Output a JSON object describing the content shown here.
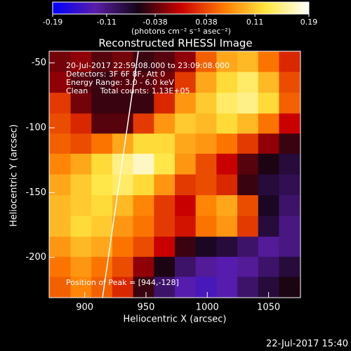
{
  "chart_data": {
    "type": "heatmap",
    "title": "Reconstructed RHESSI Image",
    "colorbar_label": "(photons cm⁻² s⁻¹ asec⁻²)",
    "clim": [
      -0.19,
      0.19
    ],
    "cticks": [
      -0.19,
      -0.11,
      -0.038,
      0.038,
      0.11,
      0.19
    ],
    "colormap": [
      "#0000ff",
      "#5a1ea8",
      "#140414",
      "#c80000",
      "#ff7a00",
      "#ffe640",
      "#ffffff"
    ],
    "x_label": "Heliocentric X (arcsec)",
    "y_label": "Heliocentric Y (arcsec)",
    "xlim": [
      871,
      1076
    ],
    "ylim": [
      -231,
      -41
    ],
    "xticks": [
      900,
      950,
      1000,
      1050
    ],
    "yticks": [
      -50,
      -100,
      -150,
      -200
    ],
    "annotations": [
      "20-Jul-2017 22:59:08.000 to 23:09:08.000",
      "Detectors: 3F 6F 8F, Att 0",
      "Energy Range: 3.0 - 6.0 keV",
      "Clean     Total counts: 1.13E+05"
    ],
    "peak_label": "Position of Peak = [944,-128]",
    "footer": "22-Jul-2017 15:40",
    "x": [
      880,
      897,
      914,
      931,
      948,
      965,
      982,
      999,
      1016,
      1033,
      1050,
      1067
    ],
    "y": [
      -49,
      -65,
      -81,
      -97,
      -112,
      -128,
      -144,
      -160,
      -176,
      -192,
      -207,
      -223
    ],
    "z": [
      [
        -0.03,
        -0.02,
        -0.04,
        -0.03,
        -0.05,
        -0.04,
        -0.02,
        0.05,
        0.09,
        0.1,
        0.06,
        0.02
      ],
      [
        -0.02,
        -0.04,
        -0.05,
        -0.04,
        -0.04,
        -0.03,
        0.03,
        0.09,
        0.12,
        0.14,
        0.1,
        0.04
      ],
      [
        0.03,
        -0.03,
        -0.05,
        -0.05,
        -0.05,
        0.02,
        0.08,
        0.11,
        0.14,
        0.15,
        0.12,
        0.05
      ],
      [
        0.04,
        0.02,
        -0.04,
        -0.04,
        0.03,
        0.08,
        0.11,
        0.1,
        0.12,
        0.1,
        0.06,
        0.0
      ],
      [
        0.05,
        0.04,
        0.06,
        0.09,
        0.12,
        0.12,
        0.09,
        0.08,
        0.06,
        0.03,
        -0.02,
        -0.05
      ],
      [
        0.07,
        0.09,
        0.12,
        0.15,
        0.17,
        0.13,
        0.08,
        0.04,
        0.0,
        -0.04,
        -0.06,
        -0.08
      ],
      [
        0.09,
        0.11,
        0.13,
        0.14,
        0.12,
        0.08,
        0.03,
        0.04,
        0.02,
        -0.05,
        -0.08,
        -0.09
      ],
      [
        0.1,
        0.11,
        0.12,
        0.1,
        0.07,
        0.03,
        0.0,
        0.07,
        0.09,
        0.04,
        -0.07,
        -0.1
      ],
      [
        0.1,
        0.12,
        0.11,
        0.08,
        0.06,
        0.03,
        0.01,
        0.06,
        0.08,
        0.03,
        -0.08,
        -0.11
      ],
      [
        0.08,
        0.1,
        0.09,
        0.06,
        0.04,
        0.0,
        -0.05,
        -0.07,
        -0.08,
        -0.1,
        -0.12,
        -0.11
      ],
      [
        0.06,
        0.08,
        0.06,
        0.04,
        -0.02,
        -0.06,
        -0.1,
        -0.12,
        -0.13,
        -0.12,
        -0.1,
        -0.08
      ],
      [
        0.05,
        0.07,
        0.05,
        0.02,
        -0.05,
        -0.1,
        -0.13,
        -0.14,
        -0.13,
        -0.1,
        -0.08,
        -0.06
      ]
    ]
  }
}
